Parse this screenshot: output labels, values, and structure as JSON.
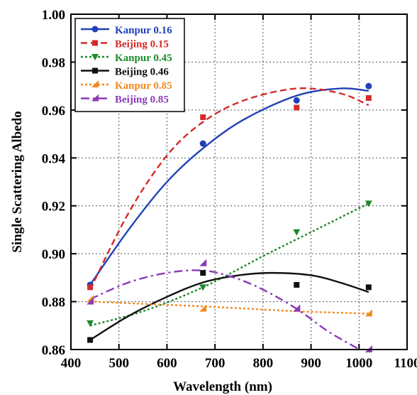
{
  "chart_data": {
    "type": "scatter",
    "xlabel": "Wavelength (nm)",
    "ylabel": "Single Scattering Albedo",
    "xlim": [
      400,
      1100
    ],
    "ylim": [
      0.86,
      1.0
    ],
    "xticks": [
      400,
      500,
      600,
      700,
      800,
      900,
      1000,
      1100
    ],
    "yticks": [
      0.86,
      0.88,
      0.9,
      0.92,
      0.94,
      0.96,
      0.98,
      1.0
    ],
    "ytick_labels": [
      "0.86",
      "0.88",
      "0.90",
      "0.92",
      "0.94",
      "0.96",
      "0.98",
      "1.00"
    ],
    "grid": true,
    "legend_position": "top-left",
    "series": [
      {
        "name": "Kanpur 0.16",
        "color": "#2040b8",
        "marker": "circle",
        "line_style": "solid",
        "x": [
          440,
          675,
          870,
          1020
        ],
        "y": [
          0.887,
          0.946,
          0.964,
          0.97
        ],
        "fit_x": [
          440,
          520,
          600,
          675,
          760,
          870,
          960,
          1020
        ],
        "fit_y": [
          0.887,
          0.91,
          0.93,
          0.944,
          0.956,
          0.966,
          0.969,
          0.968
        ]
      },
      {
        "name": "Beijing 0.15",
        "color": "#d42a2a",
        "marker": "square",
        "line_style": "dashed",
        "x": [
          440,
          675,
          870,
          1020
        ],
        "y": [
          0.886,
          0.957,
          0.961,
          0.965
        ],
        "fit_x": [
          440,
          520,
          600,
          675,
          760,
          870,
          960,
          1020
        ],
        "fit_y": [
          0.885,
          0.917,
          0.941,
          0.955,
          0.964,
          0.969,
          0.967,
          0.962
        ]
      },
      {
        "name": "Kanpur 0.45",
        "color": "#1a8a2a",
        "marker": "triangle-down",
        "line_style": "dotted",
        "x": [
          440,
          675,
          870,
          1020
        ],
        "y": [
          0.871,
          0.886,
          0.909,
          0.921
        ],
        "fit_x": [
          440,
          550,
          675,
          800,
          900,
          1020
        ],
        "fit_y": [
          0.87,
          0.876,
          0.886,
          0.899,
          0.909,
          0.921
        ]
      },
      {
        "name": "Beijing 0.46",
        "color": "#111111",
        "marker": "square",
        "line_style": "solid",
        "x": [
          440,
          675,
          870,
          1020
        ],
        "y": [
          0.864,
          0.892,
          0.887,
          0.886
        ],
        "fit_x": [
          440,
          520,
          600,
          675,
          750,
          820,
          900,
          960,
          1020
        ],
        "fit_y": [
          0.864,
          0.874,
          0.882,
          0.888,
          0.891,
          0.892,
          0.891,
          0.888,
          0.884
        ]
      },
      {
        "name": "Kanpur 0.85",
        "color": "#f08a1e",
        "marker": "triangle-half",
        "line_style": "dotted",
        "x": [
          440,
          675,
          870,
          1020
        ],
        "y": [
          0.881,
          0.877,
          0.877,
          0.875
        ],
        "fit_x": [
          440,
          675,
          870,
          1020
        ],
        "fit_y": [
          0.88,
          0.878,
          0.876,
          0.875
        ]
      },
      {
        "name": "Beijing 0.85",
        "color": "#8a3ab8",
        "marker": "triangle-half",
        "line_style": "dashdot",
        "x": [
          440,
          675,
          870,
          1020
        ],
        "y": [
          0.88,
          0.896,
          0.877,
          0.86
        ],
        "fit_x": [
          440,
          520,
          600,
          675,
          740,
          800,
          870,
          940,
          1020
        ],
        "fit_y": [
          0.881,
          0.888,
          0.892,
          0.893,
          0.89,
          0.885,
          0.877,
          0.867,
          0.858
        ]
      }
    ]
  }
}
